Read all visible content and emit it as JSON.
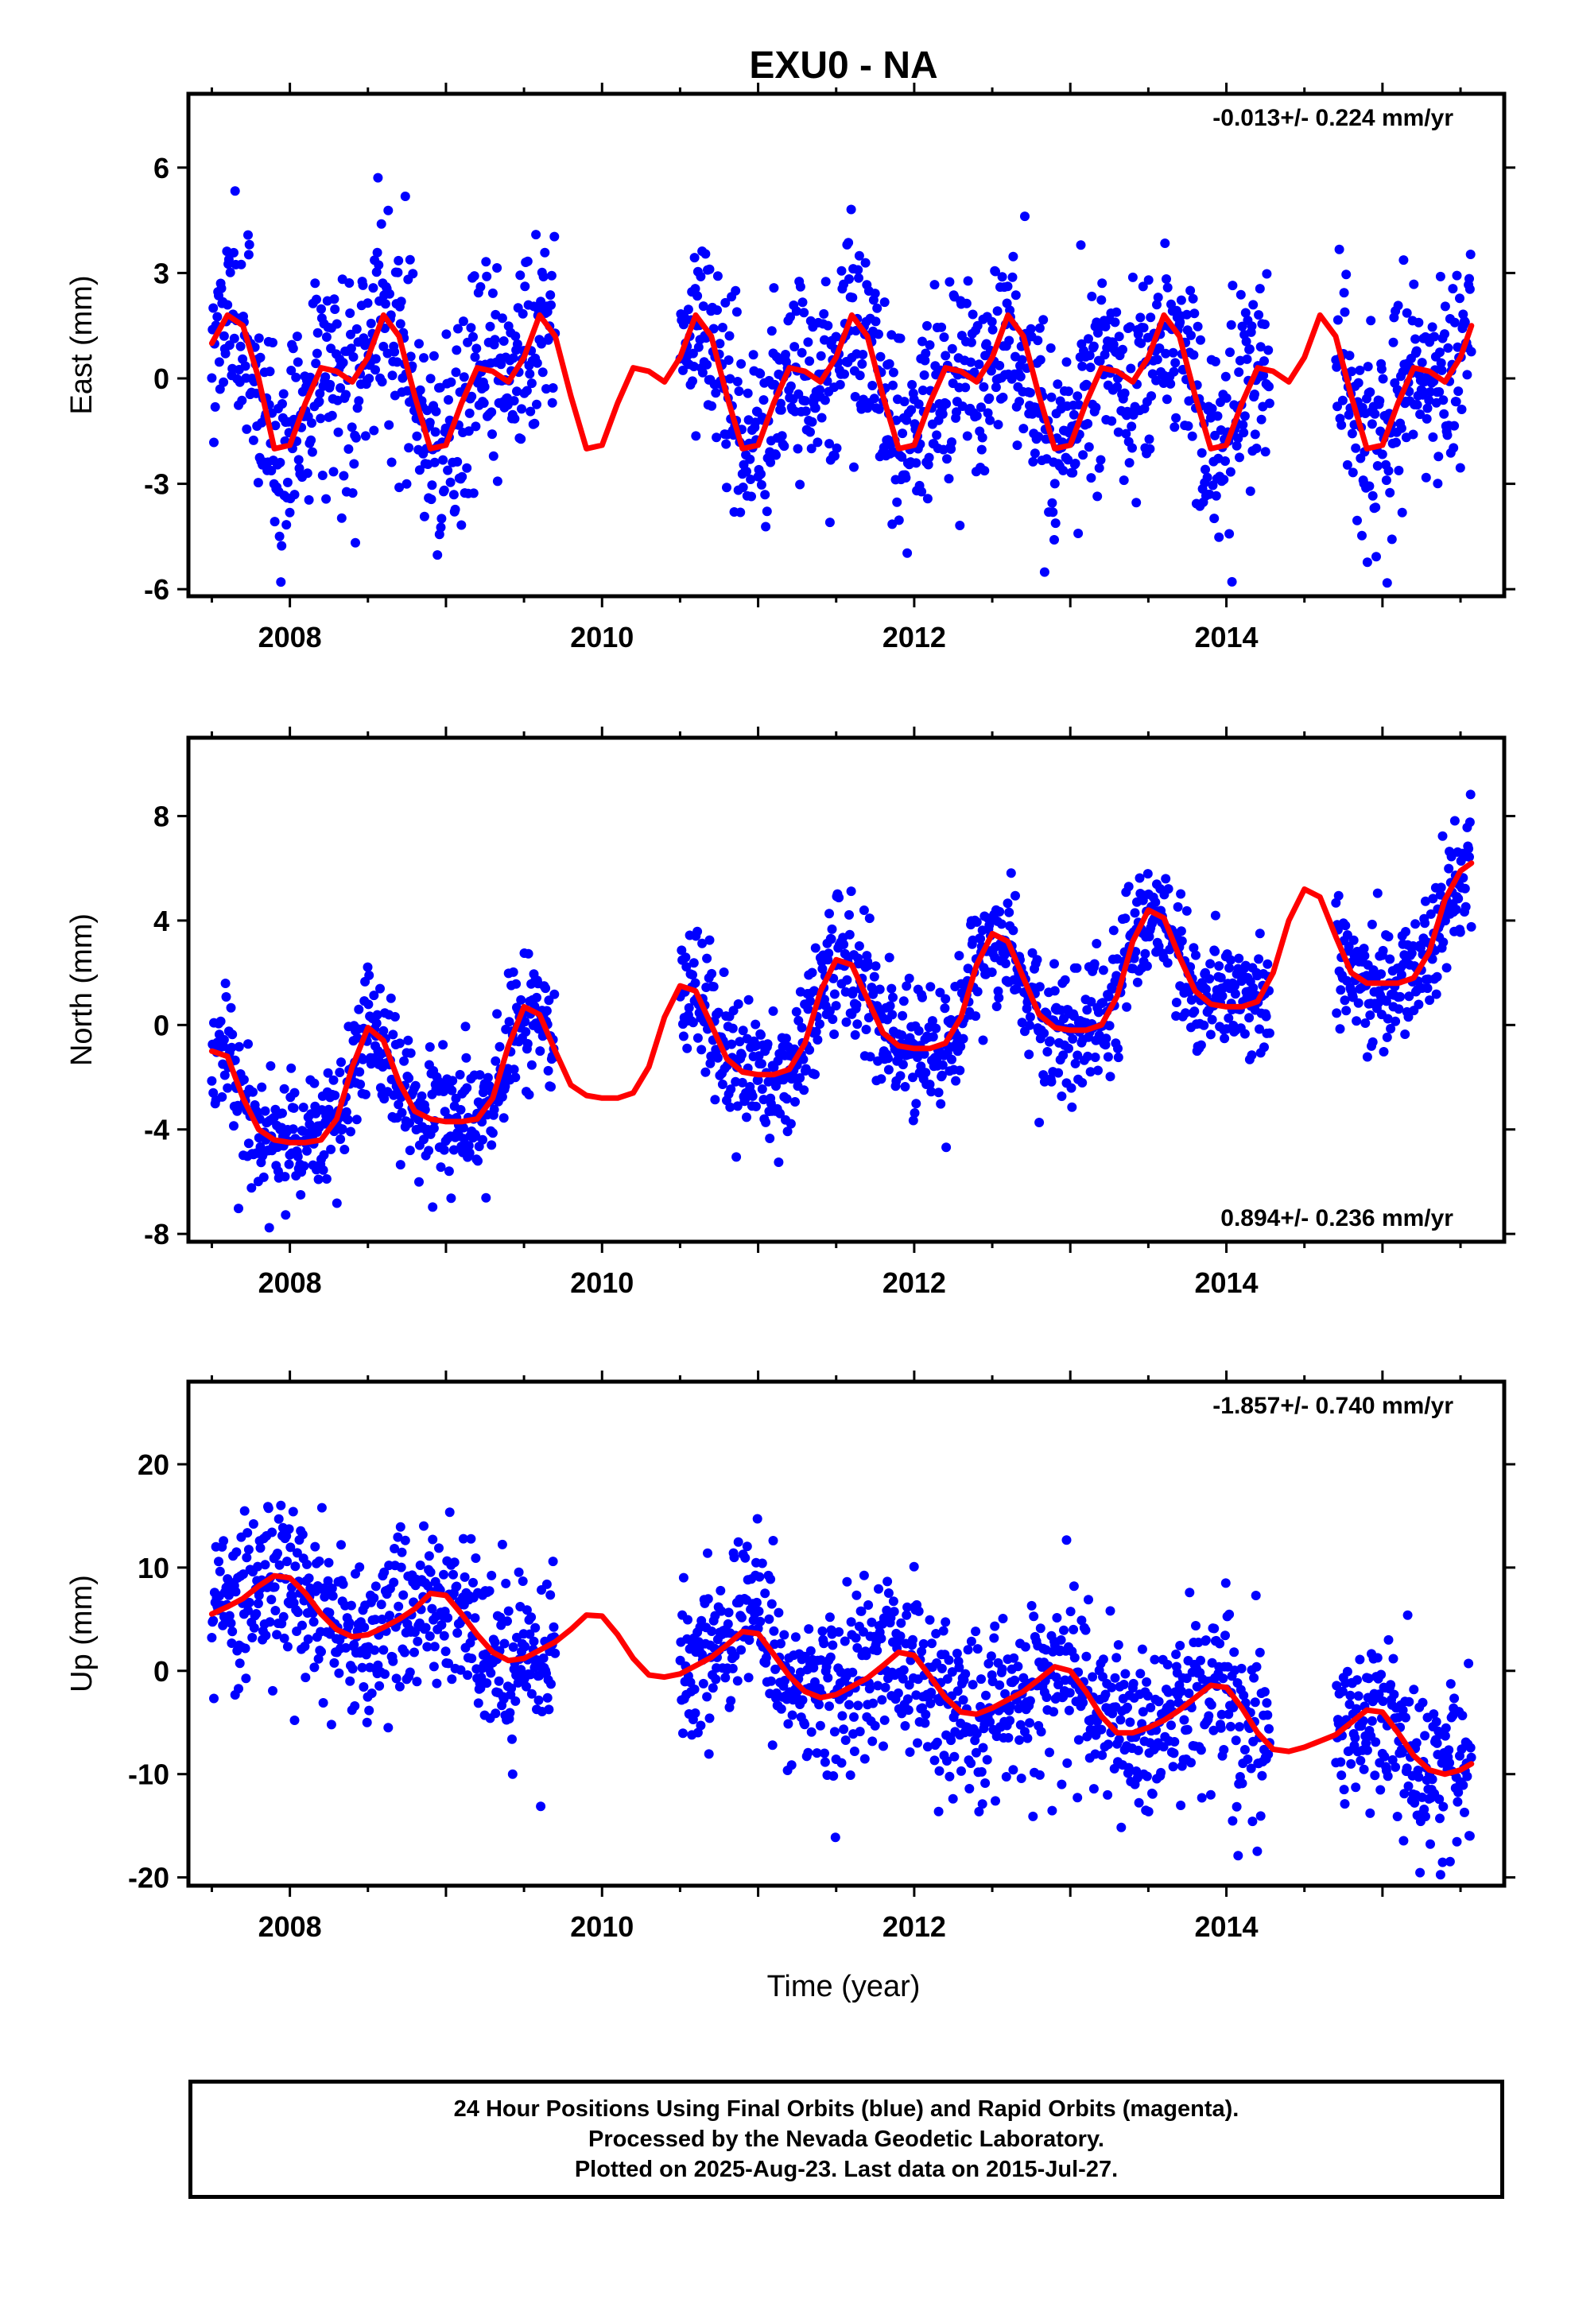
{
  "title": "EXU0 - NA",
  "x_axis_label": "Time (year)",
  "footer": {
    "line1": "24 Hour Positions Using Final Orbits (blue) and Rapid Orbits (magenta).",
    "line2": "Processed by the Nevada Geodetic Laboratory.",
    "line3": "Plotted on 2025-Aug-23. Last data on 2015-Jul-27."
  },
  "colors": {
    "points": "#0000ff",
    "model": "#ff0000",
    "frame": "#000000"
  },
  "chart_data": [
    {
      "type": "scatter",
      "name": "east",
      "ylabel": "East (mm)",
      "rate_label": "-0.013+/- 0.224 mm/yr",
      "rate_position": "top-right",
      "xlim": [
        2007.35,
        2015.78
      ],
      "ylim": [
        -6.2,
        8.1
      ],
      "yticks": [
        -6,
        -3,
        0,
        3,
        6
      ],
      "xticks": [
        2008,
        2010,
        2012,
        2014
      ],
      "x_tick_labels": [
        "2008",
        "2010",
        "2012",
        "2014"
      ],
      "data_start": 2007.5,
      "data_end": 2015.57,
      "gaps": [
        [
          2009.7,
          2010.5
        ],
        [
          2014.28,
          2014.7
        ]
      ],
      "point_scatter_sd": 1.5,
      "model": [
        [
          2007.5,
          1.0
        ],
        [
          2007.6,
          1.8
        ],
        [
          2007.7,
          1.5
        ],
        [
          2007.8,
          0.0
        ],
        [
          2007.9,
          -2.0
        ],
        [
          2008.0,
          -1.9
        ],
        [
          2008.1,
          -0.7
        ],
        [
          2008.2,
          0.3
        ],
        [
          2008.3,
          0.2
        ],
        [
          2008.4,
          -0.1
        ],
        [
          2008.5,
          0.6
        ],
        [
          2008.6,
          1.8
        ],
        [
          2008.7,
          1.2
        ],
        [
          2008.8,
          -0.5
        ],
        [
          2008.9,
          -2.0
        ],
        [
          2009.0,
          -1.9
        ],
        [
          2009.1,
          -0.7
        ],
        [
          2009.2,
          0.3
        ],
        [
          2009.3,
          0.2
        ],
        [
          2009.4,
          -0.1
        ],
        [
          2009.5,
          0.6
        ],
        [
          2009.6,
          1.8
        ],
        [
          2009.7,
          1.2
        ],
        [
          2009.8,
          -0.5
        ],
        [
          2009.9,
          -2.0
        ],
        [
          2010.0,
          -1.9
        ],
        [
          2010.1,
          -0.7
        ],
        [
          2010.2,
          0.3
        ],
        [
          2010.3,
          0.2
        ],
        [
          2010.4,
          -0.1
        ],
        [
          2010.5,
          0.6
        ],
        [
          2010.6,
          1.8
        ],
        [
          2010.7,
          1.2
        ],
        [
          2010.8,
          -0.5
        ],
        [
          2010.9,
          -2.0
        ],
        [
          2011.0,
          -1.9
        ],
        [
          2011.1,
          -0.7
        ],
        [
          2011.2,
          0.3
        ],
        [
          2011.3,
          0.2
        ],
        [
          2011.4,
          -0.1
        ],
        [
          2011.5,
          0.6
        ],
        [
          2011.6,
          1.8
        ],
        [
          2011.7,
          1.2
        ],
        [
          2011.8,
          -0.5
        ],
        [
          2011.9,
          -2.0
        ],
        [
          2012.0,
          -1.9
        ],
        [
          2012.1,
          -0.7
        ],
        [
          2012.2,
          0.3
        ],
        [
          2012.3,
          0.2
        ],
        [
          2012.4,
          -0.1
        ],
        [
          2012.5,
          0.6
        ],
        [
          2012.6,
          1.8
        ],
        [
          2012.7,
          1.2
        ],
        [
          2012.8,
          -0.5
        ],
        [
          2012.9,
          -2.0
        ],
        [
          2013.0,
          -1.9
        ],
        [
          2013.1,
          -0.7
        ],
        [
          2013.2,
          0.3
        ],
        [
          2013.3,
          0.2
        ],
        [
          2013.4,
          -0.1
        ],
        [
          2013.5,
          0.6
        ],
        [
          2013.6,
          1.8
        ],
        [
          2013.7,
          1.2
        ],
        [
          2013.8,
          -0.5
        ],
        [
          2013.9,
          -2.0
        ],
        [
          2014.0,
          -1.9
        ],
        [
          2014.1,
          -0.7
        ],
        [
          2014.2,
          0.3
        ],
        [
          2014.3,
          0.2
        ],
        [
          2014.4,
          -0.1
        ],
        [
          2014.5,
          0.6
        ],
        [
          2014.6,
          1.8
        ],
        [
          2014.7,
          1.2
        ],
        [
          2014.8,
          -0.5
        ],
        [
          2014.9,
          -2.0
        ],
        [
          2015.0,
          -1.9
        ],
        [
          2015.1,
          -0.7
        ],
        [
          2015.2,
          0.3
        ],
        [
          2015.3,
          0.2
        ],
        [
          2015.4,
          -0.1
        ],
        [
          2015.5,
          0.6
        ],
        [
          2015.57,
          1.5
        ]
      ]
    },
    {
      "type": "scatter",
      "name": "north",
      "ylabel": "North (mm)",
      "rate_label": "0.894+/- 0.236 mm/yr",
      "rate_position": "bottom-right",
      "xlim": [
        2007.35,
        2015.78
      ],
      "ylim": [
        -8.3,
        11.0
      ],
      "yticks": [
        -8,
        -4,
        0,
        4,
        8
      ],
      "xticks": [
        2008,
        2010,
        2012,
        2014
      ],
      "x_tick_labels": [
        "2008",
        "2010",
        "2012",
        "2014"
      ],
      "data_start": 2007.5,
      "data_end": 2015.57,
      "gaps": [
        [
          2009.7,
          2010.5
        ],
        [
          2014.28,
          2014.7
        ]
      ],
      "point_scatter_sd": 1.2,
      "model": [
        [
          2007.5,
          -1.0
        ],
        [
          2007.6,
          -1.2
        ],
        [
          2007.7,
          -2.8
        ],
        [
          2007.8,
          -4.0
        ],
        [
          2007.9,
          -4.4
        ],
        [
          2008.0,
          -4.5
        ],
        [
          2008.1,
          -4.5
        ],
        [
          2008.2,
          -4.4
        ],
        [
          2008.3,
          -3.6
        ],
        [
          2008.4,
          -1.6
        ],
        [
          2008.5,
          -0.1
        ],
        [
          2008.6,
          -0.6
        ],
        [
          2008.7,
          -2.2
        ],
        [
          2008.8,
          -3.3
        ],
        [
          2008.9,
          -3.6
        ],
        [
          2009.0,
          -3.7
        ],
        [
          2009.1,
          -3.7
        ],
        [
          2009.2,
          -3.6
        ],
        [
          2009.3,
          -2.8
        ],
        [
          2009.4,
          -0.8
        ],
        [
          2009.5,
          0.7
        ],
        [
          2009.6,
          0.4
        ],
        [
          2009.7,
          -1.0
        ],
        [
          2009.8,
          -2.3
        ],
        [
          2009.9,
          -2.7
        ],
        [
          2010.0,
          -2.8
        ],
        [
          2010.1,
          -2.8
        ],
        [
          2010.2,
          -2.6
        ],
        [
          2010.3,
          -1.6
        ],
        [
          2010.4,
          0.3
        ],
        [
          2010.5,
          1.5
        ],
        [
          2010.6,
          1.3
        ],
        [
          2010.7,
          0.0
        ],
        [
          2010.8,
          -1.3
        ],
        [
          2010.9,
          -1.8
        ],
        [
          2011.0,
          -1.9
        ],
        [
          2011.1,
          -1.9
        ],
        [
          2011.2,
          -1.7
        ],
        [
          2011.3,
          -0.7
        ],
        [
          2011.4,
          1.3
        ],
        [
          2011.5,
          2.5
        ],
        [
          2011.6,
          2.3
        ],
        [
          2011.7,
          1.0
        ],
        [
          2011.8,
          -0.3
        ],
        [
          2011.9,
          -0.8
        ],
        [
          2012.0,
          -0.9
        ],
        [
          2012.1,
          -0.9
        ],
        [
          2012.2,
          -0.7
        ],
        [
          2012.3,
          0.3
        ],
        [
          2012.4,
          2.3
        ],
        [
          2012.5,
          3.5
        ],
        [
          2012.6,
          3.2
        ],
        [
          2012.7,
          1.8
        ],
        [
          2012.8,
          0.4
        ],
        [
          2012.9,
          -0.1
        ],
        [
          2013.0,
          -0.2
        ],
        [
          2013.1,
          -0.2
        ],
        [
          2013.2,
          0.0
        ],
        [
          2013.3,
          1.1
        ],
        [
          2013.4,
          3.2
        ],
        [
          2013.5,
          4.4
        ],
        [
          2013.6,
          4.1
        ],
        [
          2013.7,
          2.6
        ],
        [
          2013.8,
          1.3
        ],
        [
          2013.9,
          0.8
        ],
        [
          2014.0,
          0.7
        ],
        [
          2014.1,
          0.7
        ],
        [
          2014.2,
          0.9
        ],
        [
          2014.3,
          2.0
        ],
        [
          2014.4,
          4.0
        ],
        [
          2014.5,
          5.2
        ],
        [
          2014.6,
          4.9
        ],
        [
          2014.7,
          3.4
        ],
        [
          2014.8,
          2.0
        ],
        [
          2014.9,
          1.6
        ],
        [
          2015.0,
          1.6
        ],
        [
          2015.1,
          1.6
        ],
        [
          2015.2,
          1.8
        ],
        [
          2015.3,
          2.8
        ],
        [
          2015.4,
          4.8
        ],
        [
          2015.5,
          5.9
        ],
        [
          2015.57,
          6.2
        ]
      ]
    },
    {
      "type": "scatter",
      "name": "up",
      "ylabel": "Up (mm)",
      "rate_label": "-1.857+/- 0.740 mm/yr",
      "rate_position": "top-right",
      "xlim": [
        2007.35,
        2015.78
      ],
      "ylim": [
        -20.8,
        28.0
      ],
      "yticks": [
        -20,
        -10,
        0,
        10,
        20
      ],
      "xticks": [
        2008,
        2010,
        2012,
        2014
      ],
      "x_tick_labels": [
        "2008",
        "2010",
        "2012",
        "2014"
      ],
      "data_start": 2007.5,
      "data_end": 2015.57,
      "gaps": [
        [
          2009.7,
          2010.5
        ],
        [
          2014.28,
          2014.7
        ]
      ],
      "point_scatter_sd": 4.2,
      "model": [
        [
          2007.5,
          5.5
        ],
        [
          2007.6,
          6.2
        ],
        [
          2007.7,
          7.0
        ],
        [
          2007.8,
          8.2
        ],
        [
          2007.9,
          9.2
        ],
        [
          2008.0,
          9.0
        ],
        [
          2008.1,
          7.5
        ],
        [
          2008.2,
          5.5
        ],
        [
          2008.3,
          4.0
        ],
        [
          2008.4,
          3.3
        ],
        [
          2008.5,
          3.5
        ],
        [
          2008.6,
          4.2
        ],
        [
          2008.7,
          5.0
        ],
        [
          2008.8,
          6.0
        ],
        [
          2008.9,
          7.5
        ],
        [
          2009.0,
          7.3
        ],
        [
          2009.1,
          5.5
        ],
        [
          2009.2,
          3.5
        ],
        [
          2009.3,
          1.8
        ],
        [
          2009.4,
          1.0
        ],
        [
          2009.5,
          1.2
        ],
        [
          2009.6,
          2.0
        ],
        [
          2009.7,
          2.8
        ],
        [
          2009.8,
          4.0
        ],
        [
          2009.9,
          5.4
        ],
        [
          2010.0,
          5.3
        ],
        [
          2010.1,
          3.5
        ],
        [
          2010.2,
          1.2
        ],
        [
          2010.3,
          -0.4
        ],
        [
          2010.4,
          -0.6
        ],
        [
          2010.5,
          -0.3
        ],
        [
          2010.6,
          0.5
        ],
        [
          2010.7,
          1.3
        ],
        [
          2010.8,
          2.5
        ],
        [
          2010.9,
          3.8
        ],
        [
          2011.0,
          3.6
        ],
        [
          2011.1,
          1.6
        ],
        [
          2011.2,
          -0.5
        ],
        [
          2011.3,
          -2.0
        ],
        [
          2011.4,
          -2.6
        ],
        [
          2011.5,
          -2.3
        ],
        [
          2011.6,
          -1.5
        ],
        [
          2011.7,
          -0.7
        ],
        [
          2011.8,
          0.5
        ],
        [
          2011.9,
          1.8
        ],
        [
          2012.0,
          1.5
        ],
        [
          2012.1,
          -0.5
        ],
        [
          2012.2,
          -2.6
        ],
        [
          2012.3,
          -4.0
        ],
        [
          2012.4,
          -4.2
        ],
        [
          2012.5,
          -3.6
        ],
        [
          2012.6,
          -2.8
        ],
        [
          2012.7,
          -2.0
        ],
        [
          2012.8,
          -0.8
        ],
        [
          2012.9,
          0.4
        ],
        [
          2013.0,
          0.0
        ],
        [
          2013.1,
          -2.0
        ],
        [
          2013.2,
          -4.4
        ],
        [
          2013.3,
          -6.0
        ],
        [
          2013.4,
          -6.0
        ],
        [
          2013.5,
          -5.5
        ],
        [
          2013.6,
          -4.8
        ],
        [
          2013.7,
          -3.8
        ],
        [
          2013.8,
          -2.6
        ],
        [
          2013.9,
          -1.4
        ],
        [
          2014.0,
          -1.6
        ],
        [
          2014.1,
          -3.6
        ],
        [
          2014.2,
          -6.0
        ],
        [
          2014.3,
          -7.6
        ],
        [
          2014.4,
          -7.8
        ],
        [
          2014.5,
          -7.4
        ],
        [
          2014.6,
          -6.8
        ],
        [
          2014.7,
          -6.2
        ],
        [
          2014.8,
          -5.0
        ],
        [
          2014.9,
          -3.8
        ],
        [
          2015.0,
          -4.0
        ],
        [
          2015.1,
          -6.0
        ],
        [
          2015.2,
          -8.2
        ],
        [
          2015.3,
          -9.6
        ],
        [
          2015.4,
          -10.0
        ],
        [
          2015.5,
          -9.6
        ],
        [
          2015.57,
          -9.0
        ]
      ]
    }
  ]
}
